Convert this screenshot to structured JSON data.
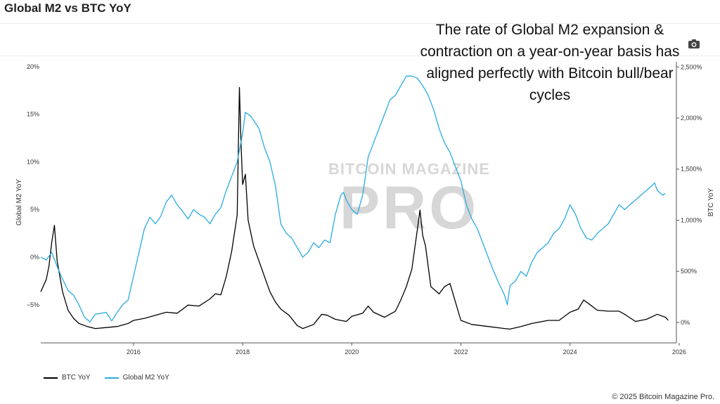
{
  "header": {
    "title": "Global M2 vs BTC YoY"
  },
  "annotation": "The rate of Global M2 expansion & contraction on a year-on-year basis has aligned perfectly with Bitcoin bull/bear cycles",
  "toolbar": {
    "camera_icon": "camera-icon"
  },
  "watermark": {
    "top": "BITCOIN MAGAZINE",
    "main": "PRO"
  },
  "footer": {
    "copyright": "© 2025 Bitcoin Magazine Pro."
  },
  "colors": {
    "btc": "#000000",
    "m2": "#29abe2",
    "axis": "#444444",
    "watermark": "#d7d7d7"
  },
  "chart_data": {
    "type": "line",
    "title": "Global M2 vs BTC YoY",
    "xlabel": "",
    "y_left_label": "Global M2 YoY",
    "y_right_label": "BTC YoY",
    "xlim": [
      2014.3,
      2025.95
    ],
    "ylim_left": [
      -9,
      20.5
    ],
    "ylim_right": [
      -200,
      2550
    ],
    "x_ticks": [
      2016,
      2018,
      2020,
      2022,
      2024,
      2026
    ],
    "x_tick_labels": [
      "2016",
      "2018",
      "2020",
      "2022",
      "2024",
      "2026"
    ],
    "y_left_ticks": [
      -5,
      0,
      5,
      10,
      15,
      20
    ],
    "y_left_tick_labels": [
      "−5%",
      "0%",
      "5%",
      "10%",
      "15%",
      "20%"
    ],
    "y_right_ticks": [
      0,
      500,
      1000,
      1500,
      2000,
      2500
    ],
    "y_right_tick_labels": [
      "0%",
      "500%",
      "1,000%",
      "1,500%",
      "2,000%",
      "2,500%"
    ],
    "grid": false,
    "legend_position": "bottom-left",
    "series": [
      {
        "name": "BTC YoY",
        "axis": "right",
        "color": "#000000",
        "points": [
          [
            2014.3,
            300
          ],
          [
            2014.4,
            420
          ],
          [
            2014.45,
            550
          ],
          [
            2014.5,
            780
          ],
          [
            2014.55,
            950
          ],
          [
            2014.6,
            600
          ],
          [
            2014.7,
            300
          ],
          [
            2014.8,
            120
          ],
          [
            2014.9,
            40
          ],
          [
            2015.0,
            -10
          ],
          [
            2015.15,
            -40
          ],
          [
            2015.3,
            -60
          ],
          [
            2015.5,
            -50
          ],
          [
            2015.7,
            -40
          ],
          [
            2015.9,
            -10
          ],
          [
            2016.0,
            20
          ],
          [
            2016.2,
            40
          ],
          [
            2016.4,
            70
          ],
          [
            2016.6,
            100
          ],
          [
            2016.8,
            90
          ],
          [
            2017.0,
            170
          ],
          [
            2017.2,
            160
          ],
          [
            2017.4,
            230
          ],
          [
            2017.5,
            280
          ],
          [
            2017.6,
            270
          ],
          [
            2017.7,
            450
          ],
          [
            2017.8,
            700
          ],
          [
            2017.9,
            1050
          ],
          [
            2017.94,
            2300
          ],
          [
            2017.97,
            1750
          ],
          [
            2018.0,
            1350
          ],
          [
            2018.05,
            1450
          ],
          [
            2018.1,
            1000
          ],
          [
            2018.2,
            750
          ],
          [
            2018.3,
            600
          ],
          [
            2018.4,
            450
          ],
          [
            2018.5,
            300
          ],
          [
            2018.6,
            200
          ],
          [
            2018.7,
            130
          ],
          [
            2018.85,
            70
          ],
          [
            2019.0,
            -30
          ],
          [
            2019.1,
            -60
          ],
          [
            2019.3,
            -20
          ],
          [
            2019.45,
            80
          ],
          [
            2019.55,
            70
          ],
          [
            2019.7,
            30
          ],
          [
            2019.9,
            10
          ],
          [
            2020.0,
            60
          ],
          [
            2020.2,
            90
          ],
          [
            2020.3,
            160
          ],
          [
            2020.4,
            100
          ],
          [
            2020.6,
            50
          ],
          [
            2020.8,
            110
          ],
          [
            2020.9,
            220
          ],
          [
            2021.0,
            350
          ],
          [
            2021.1,
            520
          ],
          [
            2021.2,
            900
          ],
          [
            2021.25,
            1100
          ],
          [
            2021.3,
            850
          ],
          [
            2021.35,
            750
          ],
          [
            2021.45,
            350
          ],
          [
            2021.6,
            280
          ],
          [
            2021.7,
            350
          ],
          [
            2021.8,
            380
          ],
          [
            2021.9,
            200
          ],
          [
            2022.0,
            20
          ],
          [
            2022.2,
            -20
          ],
          [
            2022.5,
            -40
          ],
          [
            2022.8,
            -60
          ],
          [
            2022.9,
            -65
          ],
          [
            2023.1,
            -40
          ],
          [
            2023.3,
            -10
          ],
          [
            2023.6,
            20
          ],
          [
            2023.8,
            20
          ],
          [
            2024.0,
            100
          ],
          [
            2024.15,
            130
          ],
          [
            2024.25,
            220
          ],
          [
            2024.35,
            180
          ],
          [
            2024.5,
            120
          ],
          [
            2024.7,
            110
          ],
          [
            2024.9,
            110
          ],
          [
            2025.0,
            80
          ],
          [
            2025.2,
            10
          ],
          [
            2025.4,
            30
          ],
          [
            2025.6,
            80
          ],
          [
            2025.75,
            50
          ],
          [
            2025.8,
            20
          ]
        ]
      },
      {
        "name": "Global M2 YoY",
        "axis": "left",
        "color": "#29abe2",
        "points": [
          [
            2014.3,
            0.0
          ],
          [
            2014.4,
            -0.3
          ],
          [
            2014.5,
            0.5
          ],
          [
            2014.6,
            -1.0
          ],
          [
            2014.7,
            -2.3
          ],
          [
            2014.8,
            -3.5
          ],
          [
            2014.9,
            -4.0
          ],
          [
            2015.0,
            -5.0
          ],
          [
            2015.1,
            -6.3
          ],
          [
            2015.2,
            -6.8
          ],
          [
            2015.3,
            -6.0
          ],
          [
            2015.5,
            -5.8
          ],
          [
            2015.6,
            -6.7
          ],
          [
            2015.7,
            -5.8
          ],
          [
            2015.8,
            -5.0
          ],
          [
            2015.9,
            -4.5
          ],
          [
            2016.0,
            -2.0
          ],
          [
            2016.1,
            0.5
          ],
          [
            2016.2,
            3.0
          ],
          [
            2016.3,
            4.2
          ],
          [
            2016.4,
            3.5
          ],
          [
            2016.5,
            4.3
          ],
          [
            2016.6,
            5.8
          ],
          [
            2016.7,
            6.5
          ],
          [
            2016.8,
            5.5
          ],
          [
            2016.9,
            4.8
          ],
          [
            2017.0,
            4.0
          ],
          [
            2017.1,
            5.0
          ],
          [
            2017.2,
            4.5
          ],
          [
            2017.3,
            4.2
          ],
          [
            2017.4,
            3.5
          ],
          [
            2017.5,
            4.5
          ],
          [
            2017.6,
            5.2
          ],
          [
            2017.7,
            7.0
          ],
          [
            2017.8,
            8.5
          ],
          [
            2017.9,
            10.0
          ],
          [
            2018.0,
            13.0
          ],
          [
            2018.05,
            15.2
          ],
          [
            2018.15,
            14.8
          ],
          [
            2018.3,
            13.5
          ],
          [
            2018.4,
            11.5
          ],
          [
            2018.5,
            10.0
          ],
          [
            2018.6,
            7.5
          ],
          [
            2018.7,
            3.5
          ],
          [
            2018.8,
            2.5
          ],
          [
            2018.9,
            2.0
          ],
          [
            2019.0,
            1.0
          ],
          [
            2019.1,
            0.0
          ],
          [
            2019.2,
            0.5
          ],
          [
            2019.3,
            1.5
          ],
          [
            2019.4,
            1.0
          ],
          [
            2019.5,
            1.8
          ],
          [
            2019.6,
            1.5
          ],
          [
            2019.7,
            4.5
          ],
          [
            2019.8,
            6.5
          ],
          [
            2019.85,
            6.8
          ],
          [
            2019.9,
            6.0
          ],
          [
            2020.0,
            5.0
          ],
          [
            2020.1,
            4.5
          ],
          [
            2020.2,
            6.5
          ],
          [
            2020.3,
            10.5
          ],
          [
            2020.4,
            12.0
          ],
          [
            2020.5,
            13.5
          ],
          [
            2020.6,
            15.0
          ],
          [
            2020.7,
            16.5
          ],
          [
            2020.8,
            17.0
          ],
          [
            2020.9,
            18.0
          ],
          [
            2021.0,
            19.0
          ],
          [
            2021.1,
            19.0
          ],
          [
            2021.2,
            18.8
          ],
          [
            2021.3,
            18.0
          ],
          [
            2021.4,
            17.0
          ],
          [
            2021.5,
            15.5
          ],
          [
            2021.6,
            13.5
          ],
          [
            2021.7,
            12.0
          ],
          [
            2021.8,
            11.0
          ],
          [
            2021.9,
            9.5
          ],
          [
            2022.0,
            8.0
          ],
          [
            2022.1,
            5.5
          ],
          [
            2022.2,
            4.0
          ],
          [
            2022.3,
            3.0
          ],
          [
            2022.4,
            1.5
          ],
          [
            2022.5,
            0.0
          ],
          [
            2022.6,
            -1.5
          ],
          [
            2022.7,
            -2.8
          ],
          [
            2022.8,
            -4.0
          ],
          [
            2022.85,
            -5.0
          ],
          [
            2022.9,
            -3.0
          ],
          [
            2023.0,
            -2.5
          ],
          [
            2023.1,
            -1.5
          ],
          [
            2023.2,
            -2.0
          ],
          [
            2023.3,
            -0.5
          ],
          [
            2023.4,
            0.5
          ],
          [
            2023.5,
            1.0
          ],
          [
            2023.6,
            1.5
          ],
          [
            2023.7,
            2.5
          ],
          [
            2023.8,
            3.0
          ],
          [
            2023.9,
            4.0
          ],
          [
            2024.0,
            5.5
          ],
          [
            2024.1,
            4.5
          ],
          [
            2024.2,
            3.0
          ],
          [
            2024.3,
            2.0
          ],
          [
            2024.4,
            1.8
          ],
          [
            2024.5,
            2.5
          ],
          [
            2024.6,
            3.0
          ],
          [
            2024.7,
            3.5
          ],
          [
            2024.8,
            4.5
          ],
          [
            2024.9,
            5.5
          ],
          [
            2025.0,
            5.0
          ],
          [
            2025.1,
            5.5
          ],
          [
            2025.2,
            6.0
          ],
          [
            2025.3,
            6.5
          ],
          [
            2025.4,
            7.0
          ],
          [
            2025.5,
            7.5
          ],
          [
            2025.55,
            7.8
          ],
          [
            2025.6,
            7.0
          ],
          [
            2025.7,
            6.5
          ],
          [
            2025.75,
            6.7
          ]
        ]
      }
    ]
  }
}
